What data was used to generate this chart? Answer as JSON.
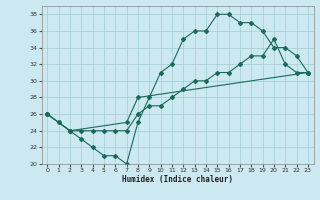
{
  "bg_color": "#cce8f0",
  "grid_color": "#9fcfcf",
  "line_color": "#1a6b5a",
  "line1_x": [
    0,
    1,
    2,
    3,
    4,
    5,
    6,
    7,
    8,
    9,
    10,
    11,
    12,
    13,
    14,
    15,
    16,
    17,
    18,
    19,
    20,
    21,
    22,
    23
  ],
  "line1_y": [
    26,
    25,
    24,
    23,
    22,
    21,
    21,
    20,
    25,
    28,
    31,
    32,
    35,
    36,
    36,
    38,
    38,
    37,
    37,
    36,
    34,
    34,
    33,
    31
  ],
  "line2_x": [
    0,
    2,
    7,
    8,
    23
  ],
  "line2_y": [
    26,
    24,
    25,
    28,
    31
  ],
  "line3_x": [
    0,
    1,
    2,
    3,
    4,
    5,
    6,
    7,
    8,
    9,
    10,
    11,
    12,
    13,
    14,
    15,
    16,
    17,
    18,
    19,
    20,
    21,
    22,
    23
  ],
  "line3_y": [
    26,
    25,
    24,
    24,
    24,
    24,
    24,
    24,
    26,
    27,
    27,
    28,
    29,
    30,
    30,
    31,
    31,
    32,
    33,
    33,
    35,
    32,
    31,
    31
  ],
  "xlabel": "Humidex (Indice chaleur)",
  "xlim": [
    -0.5,
    23.5
  ],
  "ylim": [
    20,
    39
  ],
  "xticks": [
    0,
    1,
    2,
    3,
    4,
    5,
    6,
    7,
    8,
    9,
    10,
    11,
    12,
    13,
    14,
    15,
    16,
    17,
    18,
    19,
    20,
    21,
    22,
    23
  ],
  "yticks": [
    20,
    22,
    24,
    26,
    28,
    30,
    32,
    34,
    36,
    38
  ]
}
